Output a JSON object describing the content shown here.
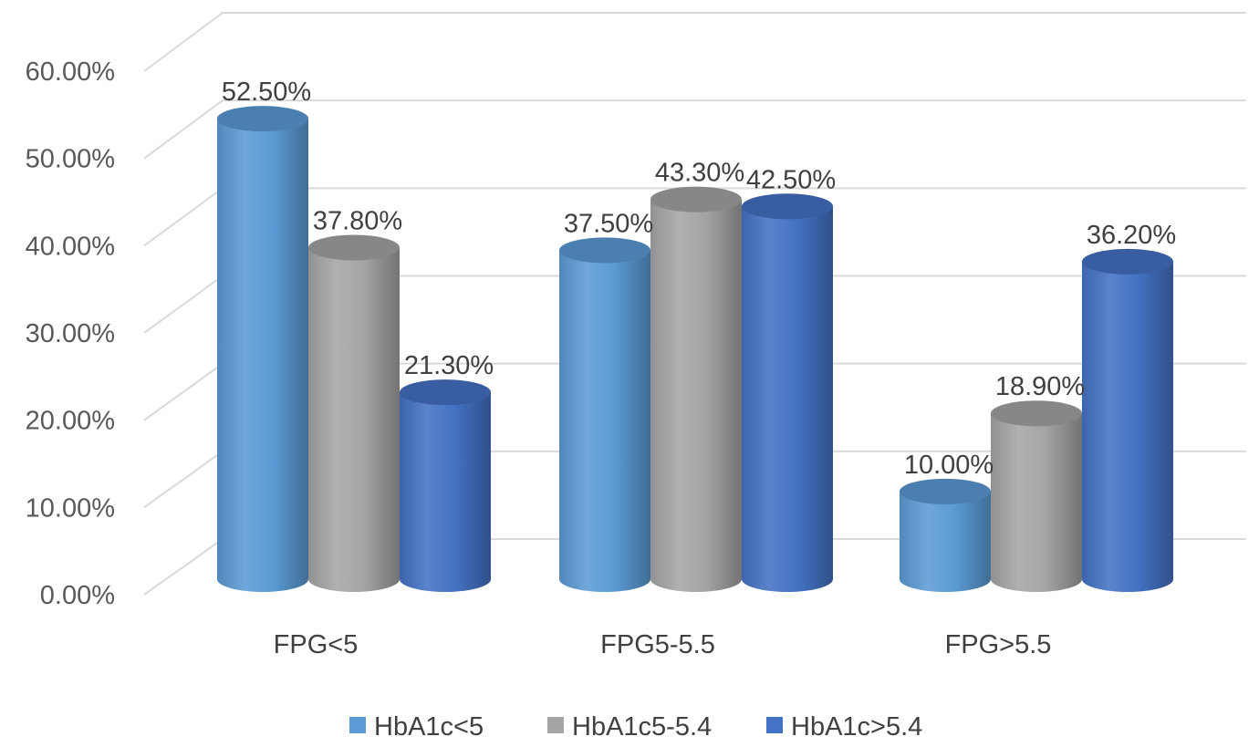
{
  "chart_data": {
    "type": "bar",
    "style": "3d-cylinder",
    "categories": [
      "FPG<5",
      "FPG5-5.5",
      "FPG>5.5"
    ],
    "series": [
      {
        "name": "HbA1c<5",
        "values": [
          52.5,
          37.5,
          10.0
        ],
        "labels": [
          "52.50%",
          "37.50%",
          "10.00%"
        ],
        "color": "#5b9bd5"
      },
      {
        "name": "HbA1c5-5.4",
        "values": [
          37.8,
          43.3,
          18.9
        ],
        "labels": [
          "37.80%",
          "43.30%",
          "18.90%"
        ],
        "color": "#a5a5a5"
      },
      {
        "name": "HbA1c>5.4",
        "values": [
          21.3,
          42.5,
          36.2
        ],
        "labels": [
          "21.30%",
          "42.50%",
          "36.20%"
        ],
        "color": "#4472c4"
      }
    ],
    "ylim": [
      0,
      60
    ],
    "yticks": [
      0,
      10,
      20,
      30,
      40,
      50,
      60
    ],
    "ytick_labels": [
      "0.00%",
      "10.00%",
      "20.00%",
      "30.00%",
      "40.00%",
      "50.00%",
      "60.00%"
    ],
    "title": "",
    "xlabel": "",
    "ylabel": "",
    "grid": true,
    "legend_position": "bottom"
  }
}
